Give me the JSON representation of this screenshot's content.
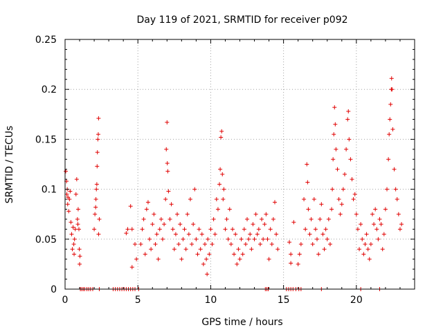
{
  "chart_data": {
    "type": "scatter",
    "title": "Day 119 of 2021, SRMTID for receiver p092",
    "xlabel": "GPS time / hours",
    "ylabel": "SRMTID / TECUs",
    "xlim": [
      0,
      24
    ],
    "ylim": [
      0,
      0.25
    ],
    "xticks": [
      "0",
      "5",
      "10",
      "15",
      "20"
    ],
    "yticks": [
      "0",
      "0.05",
      "0.1",
      "0.15",
      "0.2",
      "0.25"
    ],
    "grid": true,
    "marker": "+",
    "color": "#e00000",
    "series": [
      {
        "name": "SRMTID",
        "points": [
          [
            0.05,
            0.118
          ],
          [
            0.1,
            0.108
          ],
          [
            0.12,
            0.095
          ],
          [
            0.15,
            0.1
          ],
          [
            0.18,
            0.085
          ],
          [
            0.2,
            0.092
          ],
          [
            0.25,
            0.078
          ],
          [
            0.3,
            0.09
          ],
          [
            0.35,
            0.098
          ],
          [
            0.4,
            0.067
          ],
          [
            0.45,
            0.055
          ],
          [
            0.5,
            0.04
          ],
          [
            0.55,
            0.062
          ],
          [
            0.6,
            0.045
          ],
          [
            0.62,
            0.035
          ],
          [
            0.65,
            0.05
          ],
          [
            0.7,
            0.06
          ],
          [
            0.75,
            0.095
          ],
          [
            0.8,
            0.11
          ],
          [
            0.85,
            0.07
          ],
          [
            0.88,
            0.065
          ],
          [
            0.9,
            0.08
          ],
          [
            0.95,
            0.06
          ],
          [
            0.98,
            0.04
          ],
          [
            1.0,
            0.025
          ],
          [
            1.02,
            0.033
          ],
          [
            2.0,
            0.06
          ],
          [
            2.05,
            0.075
          ],
          [
            2.1,
            0.082
          ],
          [
            2.12,
            0.09
          ],
          [
            2.15,
            0.1
          ],
          [
            2.18,
            0.105
          ],
          [
            2.2,
            0.123
          ],
          [
            2.22,
            0.137
          ],
          [
            2.25,
            0.15
          ],
          [
            2.28,
            0.155
          ],
          [
            2.3,
            0.171
          ],
          [
            2.35,
            0.07
          ],
          [
            2.3,
            0.055
          ],
          [
            4.2,
            0.056
          ],
          [
            4.3,
            0.06
          ],
          [
            4.5,
            0.083
          ],
          [
            4.6,
            0.06
          ],
          [
            4.6,
            0.022
          ],
          [
            4.8,
            0.045
          ],
          [
            4.9,
            0.03
          ],
          [
            5.2,
            0.045
          ],
          [
            5.3,
            0.06
          ],
          [
            5.4,
            0.07
          ],
          [
            5.5,
            0.035
          ],
          [
            5.6,
            0.08
          ],
          [
            5.7,
            0.087
          ],
          [
            5.8,
            0.05
          ],
          [
            5.9,
            0.04
          ],
          [
            6.0,
            0.065
          ],
          [
            6.1,
            0.075
          ],
          [
            6.2,
            0.045
          ],
          [
            6.3,
            0.055
          ],
          [
            6.4,
            0.03
          ],
          [
            6.5,
            0.06
          ],
          [
            6.6,
            0.07
          ],
          [
            6.7,
            0.05
          ],
          [
            6.8,
            0.065
          ],
          [
            6.9,
            0.09
          ],
          [
            6.95,
            0.14
          ],
          [
            7.0,
            0.167
          ],
          [
            7.02,
            0.126
          ],
          [
            7.05,
            0.118
          ],
          [
            7.1,
            0.098
          ],
          [
            7.2,
            0.07
          ],
          [
            7.3,
            0.085
          ],
          [
            7.4,
            0.06
          ],
          [
            7.5,
            0.04
          ],
          [
            7.6,
            0.055
          ],
          [
            7.7,
            0.075
          ],
          [
            7.8,
            0.045
          ],
          [
            7.9,
            0.065
          ],
          [
            8.0,
            0.03
          ],
          [
            8.1,
            0.05
          ],
          [
            8.2,
            0.06
          ],
          [
            8.3,
            0.04
          ],
          [
            8.4,
            0.075
          ],
          [
            8.5,
            0.055
          ],
          [
            8.6,
            0.09
          ],
          [
            8.7,
            0.045
          ],
          [
            8.8,
            0.065
          ],
          [
            8.9,
            0.1
          ],
          [
            9.0,
            0.05
          ],
          [
            9.1,
            0.035
          ],
          [
            9.2,
            0.06
          ],
          [
            9.3,
            0.04
          ],
          [
            9.4,
            0.055
          ],
          [
            9.5,
            0.025
          ],
          [
            9.6,
            0.045
          ],
          [
            9.7,
            0.03
          ],
          [
            9.75,
            0.015
          ],
          [
            9.8,
            0.05
          ],
          [
            9.9,
            0.035
          ],
          [
            10.0,
            0.06
          ],
          [
            10.1,
            0.045
          ],
          [
            10.2,
            0.07
          ],
          [
            10.3,
            0.055
          ],
          [
            10.4,
            0.09
          ],
          [
            10.5,
            0.08
          ],
          [
            10.6,
            0.105
          ],
          [
            10.65,
            0.12
          ],
          [
            10.7,
            0.152
          ],
          [
            10.75,
            0.158
          ],
          [
            10.8,
            0.115
          ],
          [
            10.85,
            0.09
          ],
          [
            10.9,
            0.1
          ],
          [
            11.0,
            0.06
          ],
          [
            11.1,
            0.07
          ],
          [
            11.2,
            0.05
          ],
          [
            11.3,
            0.08
          ],
          [
            11.4,
            0.045
          ],
          [
            11.5,
            0.06
          ],
          [
            11.6,
            0.035
          ],
          [
            11.7,
            0.055
          ],
          [
            11.8,
            0.025
          ],
          [
            11.9,
            0.04
          ],
          [
            12.0,
            0.03
          ],
          [
            12.1,
            0.05
          ],
          [
            12.2,
            0.035
          ],
          [
            12.3,
            0.06
          ],
          [
            12.4,
            0.045
          ],
          [
            12.5,
            0.07
          ],
          [
            12.6,
            0.05
          ],
          [
            12.7,
            0.055
          ],
          [
            12.8,
            0.04
          ],
          [
            12.9,
            0.065
          ],
          [
            13.0,
            0.05
          ],
          [
            13.1,
            0.075
          ],
          [
            13.2,
            0.055
          ],
          [
            13.3,
            0.06
          ],
          [
            13.4,
            0.045
          ],
          [
            13.5,
            0.07
          ],
          [
            13.6,
            0.05
          ],
          [
            13.7,
            0.065
          ],
          [
            13.8,
            0.075
          ],
          [
            13.9,
            0.05
          ],
          [
            14.0,
            0.03
          ],
          [
            14.1,
            0.06
          ],
          [
            14.2,
            0.045
          ],
          [
            14.3,
            0.07
          ],
          [
            14.4,
            0.087
          ],
          [
            14.5,
            0.055
          ],
          [
            14.6,
            0.04
          ],
          [
            15.4,
            0.047
          ],
          [
            15.5,
            0.035
          ],
          [
            15.5,
            0.026
          ],
          [
            15.7,
            0.067
          ],
          [
            16.0,
            0.025
          ],
          [
            16.1,
            0.035
          ],
          [
            16.2,
            0.045
          ],
          [
            16.4,
            0.09
          ],
          [
            16.5,
            0.06
          ],
          [
            16.6,
            0.125
          ],
          [
            16.65,
            0.107
          ],
          [
            16.7,
            0.08
          ],
          [
            16.8,
            0.055
          ],
          [
            16.9,
            0.07
          ],
          [
            17.0,
            0.045
          ],
          [
            17.1,
            0.09
          ],
          [
            17.2,
            0.06
          ],
          [
            17.3,
            0.05
          ],
          [
            17.4,
            0.035
          ],
          [
            17.5,
            0.07
          ],
          [
            17.6,
            0.085
          ],
          [
            17.7,
            0.055
          ],
          [
            17.8,
            0.04
          ],
          [
            17.9,
            0.06
          ],
          [
            18.0,
            0.05
          ],
          [
            18.1,
            0.07
          ],
          [
            18.2,
            0.045
          ],
          [
            18.3,
            0.08
          ],
          [
            18.35,
            0.1
          ],
          [
            18.4,
            0.13
          ],
          [
            18.45,
            0.155
          ],
          [
            18.5,
            0.182
          ],
          [
            18.55,
            0.165
          ],
          [
            18.6,
            0.14
          ],
          [
            18.7,
            0.12
          ],
          [
            18.8,
            0.09
          ],
          [
            18.9,
            0.075
          ],
          [
            19.0,
            0.085
          ],
          [
            19.1,
            0.1
          ],
          [
            19.2,
            0.115
          ],
          [
            19.3,
            0.14
          ],
          [
            19.4,
            0.17
          ],
          [
            19.45,
            0.178
          ],
          [
            19.5,
            0.15
          ],
          [
            19.6,
            0.13
          ],
          [
            19.7,
            0.11
          ],
          [
            19.8,
            0.09
          ],
          [
            19.9,
            0.095
          ],
          [
            20.0,
            0.075
          ],
          [
            20.1,
            0.06
          ],
          [
            20.2,
            0.04
          ],
          [
            20.3,
            0.065
          ],
          [
            20.4,
            0.05
          ],
          [
            20.5,
            0.035
          ],
          [
            20.6,
            0.045
          ],
          [
            20.7,
            0.055
          ],
          [
            20.8,
            0.04
          ],
          [
            20.9,
            0.03
          ],
          [
            21.0,
            0.045
          ],
          [
            21.1,
            0.075
          ],
          [
            21.2,
            0.065
          ],
          [
            21.3,
            0.08
          ],
          [
            21.4,
            0.06
          ],
          [
            21.5,
            0.05
          ],
          [
            21.6,
            0.07
          ],
          [
            21.7,
            0.065
          ],
          [
            21.8,
            0.04
          ],
          [
            21.9,
            0.055
          ],
          [
            22.0,
            0.08
          ],
          [
            22.1,
            0.1
          ],
          [
            22.2,
            0.13
          ],
          [
            22.25,
            0.155
          ],
          [
            22.3,
            0.17
          ],
          [
            22.35,
            0.185
          ],
          [
            22.4,
            0.2
          ],
          [
            22.42,
            0.211
          ],
          [
            22.45,
            0.2
          ],
          [
            22.5,
            0.16
          ],
          [
            22.6,
            0.12
          ],
          [
            22.7,
            0.1
          ],
          [
            22.8,
            0.09
          ],
          [
            22.9,
            0.075
          ],
          [
            23.0,
            0.06
          ],
          [
            23.1,
            0.065
          ]
        ]
      }
    ],
    "zero_points_x": [
      1.05,
      1.15,
      1.25,
      1.35,
      1.5,
      1.62,
      1.75,
      1.9,
      2.35,
      3.3,
      3.45,
      3.6,
      3.75,
      3.9,
      4.05,
      4.2,
      4.35,
      4.5,
      4.65,
      4.8,
      5.05,
      13.75,
      13.85,
      13.95,
      15.2,
      15.35,
      15.5,
      15.65,
      15.85,
      16.05,
      16.2,
      17.6,
      20.3,
      21.6
    ]
  }
}
